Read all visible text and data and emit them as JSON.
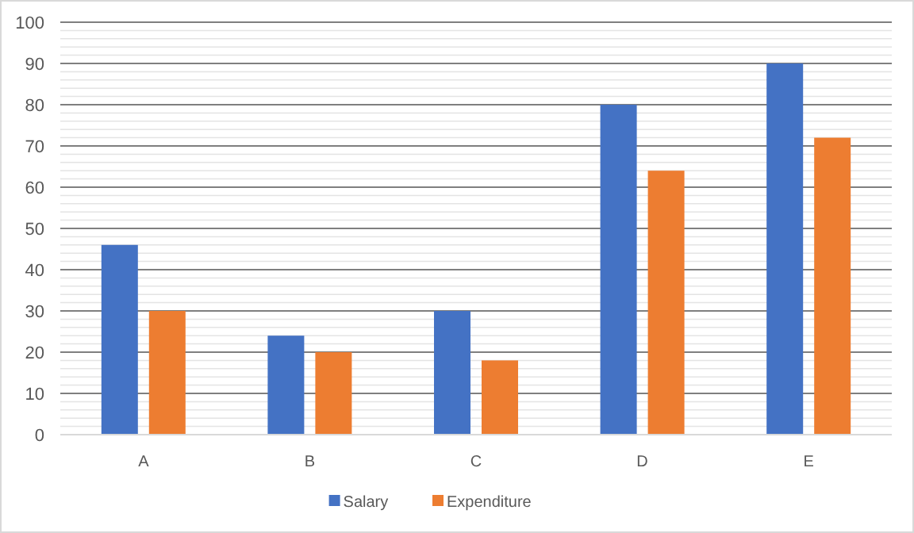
{
  "chart_data": {
    "type": "bar",
    "categories": [
      "A",
      "B",
      "C",
      "D",
      "E"
    ],
    "series": [
      {
        "name": "Salary",
        "color": "#4472c4",
        "values": [
          46,
          24,
          30,
          80,
          90
        ]
      },
      {
        "name": "Expenditure",
        "color": "#ed7d31",
        "values": [
          30,
          20,
          18,
          64,
          72
        ]
      }
    ],
    "ylim": [
      0,
      100
    ],
    "yticks": [
      0,
      {
        "value": 2,
        "label": null
      },
      {
        "value": 4,
        "label": null
      },
      {
        "value": 6,
        "label": null
      },
      {
        "value": 8,
        "label": null
      },
      10,
      {
        "value": 12,
        "label": null
      },
      {
        "value": 14,
        "label": null
      },
      {
        "value": 16,
        "label": null
      },
      {
        "value": 18,
        "label": null
      },
      20,
      {
        "value": 22,
        "label": null
      },
      {
        "value": 24,
        "label": null
      },
      {
        "value": 26,
        "label": null
      },
      {
        "value": 28,
        "label": null
      },
      30,
      {
        "value": 32,
        "label": null
      },
      {
        "value": 34,
        "label": null
      },
      {
        "value": 36,
        "label": null
      },
      {
        "value": 38,
        "label": null
      },
      40,
      {
        "value": 42,
        "label": null
      },
      {
        "value": 44,
        "label": null
      },
      {
        "value": 46,
        "label": null
      },
      {
        "value": 48,
        "label": null
      },
      50,
      {
        "value": 52,
        "label": null
      },
      {
        "value": 54,
        "label": null
      },
      {
        "value": 56,
        "label": null
      },
      {
        "value": 58,
        "label": null
      },
      60,
      {
        "value": 62,
        "label": null
      },
      {
        "value": 64,
        "label": null
      },
      {
        "value": 66,
        "label": null
      },
      {
        "value": 68,
        "label": null
      },
      70,
      {
        "value": 72,
        "label": null
      },
      {
        "value": 74,
        "label": null
      },
      {
        "value": 76,
        "label": null
      },
      {
        "value": 78,
        "label": null
      },
      80,
      {
        "value": 82,
        "label": null
      },
      {
        "value": 84,
        "label": null
      },
      {
        "value": 86,
        "label": null
      },
      {
        "value": 88,
        "label": null
      },
      90,
      {
        "value": 92,
        "label": null
      },
      {
        "value": 94,
        "label": null
      },
      {
        "value": 96,
        "label": null
      },
      {
        "value": 98,
        "label": null
      },
      100
    ],
    "grid": true,
    "legend": "bottom"
  }
}
